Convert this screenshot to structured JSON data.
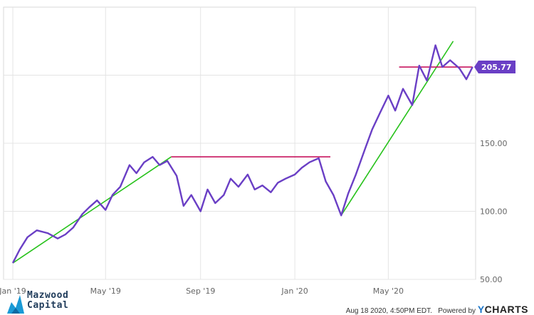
{
  "chart_data": {
    "type": "line",
    "title": "",
    "xlabel": "",
    "ylabel": "",
    "x_ticks": [
      "Jan '19",
      "May '19",
      "Sep '19",
      "Jan '20",
      "May '20"
    ],
    "y_ticks": [
      "50.00",
      "100.00",
      "150.00"
    ],
    "ylim": [
      50,
      250
    ],
    "current_value_label": "205.77",
    "series": [
      {
        "color": "#6a3fc5",
        "x": [
          "2019-01-01",
          "2019-01-10",
          "2019-01-20",
          "2019-02-01",
          "2019-02-15",
          "2019-02-28",
          "2019-03-10",
          "2019-03-20",
          "2019-04-01",
          "2019-04-10",
          "2019-04-20",
          "2019-05-01",
          "2019-05-10",
          "2019-05-20",
          "2019-06-01",
          "2019-06-10",
          "2019-06-20",
          "2019-07-01",
          "2019-07-10",
          "2019-07-20",
          "2019-08-01",
          "2019-08-10",
          "2019-08-20",
          "2019-09-01",
          "2019-09-10",
          "2019-09-20",
          "2019-10-01",
          "2019-10-10",
          "2019-10-20",
          "2019-11-01",
          "2019-11-10",
          "2019-11-20",
          "2019-12-01",
          "2019-12-10",
          "2019-12-20",
          "2020-01-01",
          "2020-01-10",
          "2020-01-20",
          "2020-02-01",
          "2020-02-10",
          "2020-02-20",
          "2020-03-01",
          "2020-03-10",
          "2020-03-20",
          "2020-04-01",
          "2020-04-10",
          "2020-04-20",
          "2020-05-01",
          "2020-05-10",
          "2020-05-20",
          "2020-06-01",
          "2020-06-10",
          "2020-06-20",
          "2020-07-01",
          "2020-07-10",
          "2020-07-20",
          "2020-08-01",
          "2020-08-10",
          "2020-08-18"
        ],
        "values": [
          62,
          72,
          81,
          86,
          84,
          80,
          83,
          88,
          98,
          103,
          108,
          101,
          112,
          118,
          134,
          128,
          136,
          140,
          134,
          137,
          126,
          104,
          112,
          100,
          116,
          106,
          112,
          124,
          118,
          127,
          116,
          119,
          114,
          121,
          124,
          127,
          132,
          136,
          139,
          122,
          112,
          97,
          113,
          127,
          146,
          160,
          172,
          185,
          174,
          190,
          178,
          207,
          196,
          222,
          206,
          211,
          205,
          197,
          206
        ]
      }
    ],
    "trendlines": [
      {
        "type": "trend",
        "color": "#27c21b",
        "x": [
          "2019-01-01",
          "2019-07-25"
        ],
        "values": [
          62,
          140
        ]
      },
      {
        "type": "resistance",
        "color": "#c7155f",
        "x": [
          "2019-07-25",
          "2020-02-16"
        ],
        "values": [
          140,
          140
        ]
      },
      {
        "type": "trend",
        "color": "#27c21b",
        "x": [
          "2020-03-01",
          "2020-07-24"
        ],
        "values": [
          97,
          225
        ]
      },
      {
        "type": "resistance",
        "color": "#c7155f",
        "x": [
          "2020-05-15",
          "2020-08-18"
        ],
        "values": [
          206,
          206
        ]
      }
    ]
  },
  "logo": {
    "line1": "Mazwood",
    "line2": "Capital"
  },
  "footer": {
    "timestamp": "Aug 18 2020, 4:50PM EDT.",
    "powered_by": "Powered by",
    "brand_y": "Y",
    "brand_rest": "CHARTS"
  }
}
